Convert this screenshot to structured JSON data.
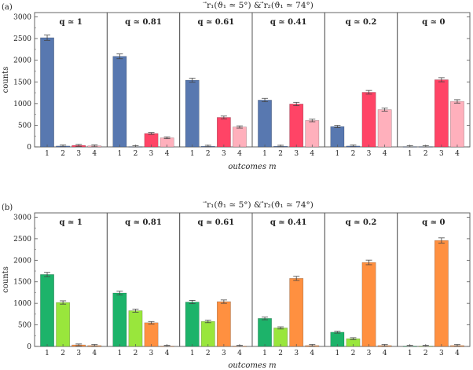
{
  "chart_data": [
    {
      "type": "bar",
      "label": "(a)",
      "title": "⃗r₁(ϑ₁ ≃ 5°)  &  ⃗r₂(ϑ₁ ≃ 74°)",
      "xlabel": "outcomes m",
      "ylabel": "counts",
      "ylim": [
        0,
        3100
      ],
      "yticks": [
        0,
        500,
        1000,
        1500,
        2000,
        2500,
        3000
      ],
      "categories": [
        "1",
        "2",
        "3",
        "4"
      ],
      "colors": [
        "#5878b0",
        "#5878b0",
        "#ff4466",
        "#ffb0bc"
      ],
      "error_bars": true,
      "panels": [
        {
          "title": "q ≃ 1",
          "values": [
            2520,
            20,
            35,
            25
          ]
        },
        {
          "title": "q ≃ 0.81",
          "values": [
            2090,
            5,
            310,
            210
          ]
        },
        {
          "title": "q ≃ 0.61",
          "values": [
            1540,
            15,
            680,
            460
          ]
        },
        {
          "title": "q ≃ 0.41",
          "values": [
            1080,
            15,
            990,
            610
          ]
        },
        {
          "title": "q ≃ 0.2",
          "values": [
            470,
            20,
            1260,
            860
          ]
        },
        {
          "title": "q ≃ 0",
          "values": [
            5,
            5,
            1550,
            1050
          ]
        }
      ]
    },
    {
      "type": "bar",
      "label": "(b)",
      "title": "⃗r₁(ϑ₁ ≃ 5°)  &  ⃗r₂(ϑ₁ ≃ 74°)",
      "xlabel": "outcomes m",
      "ylabel": "counts",
      "ylim": [
        0,
        3100
      ],
      "yticks": [
        0,
        500,
        1000,
        1500,
        2000,
        2500,
        3000
      ],
      "categories": [
        "1",
        "2",
        "3",
        "4"
      ],
      "colors": [
        "#1db36a",
        "#99e63c",
        "#ff9040",
        "#ff9040"
      ],
      "error_bars": true,
      "panels": [
        {
          "title": "q ≃ 1",
          "values": [
            1670,
            1020,
            35,
            20
          ]
        },
        {
          "title": "q ≃ 0.81",
          "values": [
            1240,
            830,
            550,
            5
          ]
        },
        {
          "title": "q ≃ 0.61",
          "values": [
            1030,
            580,
            1040,
            5
          ]
        },
        {
          "title": "q ≃ 0.41",
          "values": [
            650,
            430,
            1580,
            20
          ]
        },
        {
          "title": "q ≃ 0.2",
          "values": [
            330,
            180,
            1950,
            20
          ]
        },
        {
          "title": "q ≃ 0",
          "values": [
            5,
            5,
            2460,
            20
          ]
        }
      ]
    }
  ]
}
